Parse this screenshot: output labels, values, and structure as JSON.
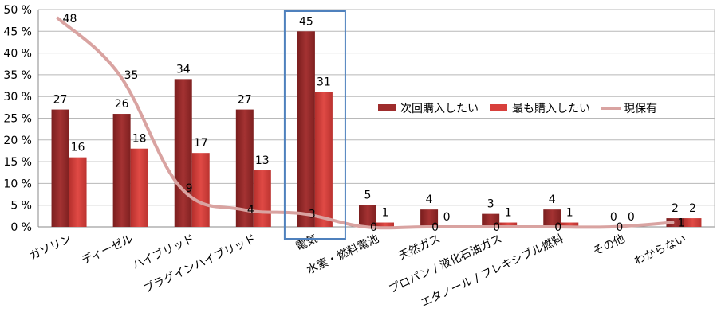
{
  "chart_data": {
    "type": "bar",
    "categories": [
      "ガソリン",
      "ディーゼル",
      "ハイブリッド",
      "プラグインハイブリッド",
      "電気",
      "水素・燃料電池",
      "天然ガス",
      "プロパン / 液化石油ガス",
      "エタノール / フレキシブル燃料",
      "その他",
      "わからない"
    ],
    "series": [
      {
        "name": "次回購入したい",
        "type": "bar",
        "color": "#9E2C2C",
        "values": [
          27,
          26,
          34,
          27,
          45,
          5,
          4,
          3,
          4,
          0,
          2
        ]
      },
      {
        "name": "最も購入したい",
        "type": "bar",
        "color": "#D8403C",
        "values": [
          16,
          18,
          17,
          13,
          31,
          1,
          0,
          1,
          1,
          0,
          2
        ]
      },
      {
        "name": "現保有",
        "type": "line",
        "color": "#D9A3A1",
        "values": [
          48,
          35,
          9,
          4,
          3,
          0,
          0,
          0,
          0,
          0,
          1
        ]
      }
    ],
    "yticks": [
      "0 %",
      "5 %",
      "10 %",
      "15 %",
      "20 %",
      "25 %",
      "30 %",
      "35 %",
      "40 %",
      "45 %",
      "50 %"
    ],
    "ylim": [
      0,
      50
    ],
    "grid": true,
    "legend_position": "right",
    "highlight_category": "電気",
    "highlight_color": "#4F81BD"
  }
}
